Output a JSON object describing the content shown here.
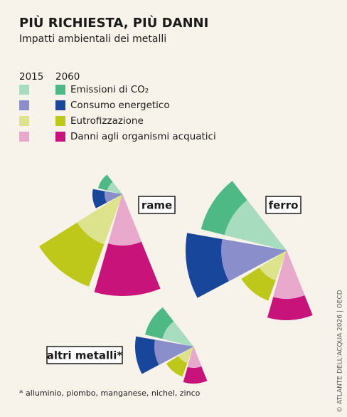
{
  "title": "PIÙ RICHIESTA, PIÙ DANNI",
  "subtitle": "Impatti ambientali dei metalli",
  "footnote": "* alluminio, piombo, manganese, nichel, zinco",
  "source": "© ATLANTE DELL'ACQUA 2026 | OECD",
  "chart_data": {
    "type": "rose",
    "categories": [
      "Emissioni di CO₂",
      "Consumo energetico",
      "Eutrofizzazione",
      "Danni agli organismi acquatici"
    ],
    "series": [
      {
        "name": "2015",
        "colors": [
          "#a8dcbf",
          "#8a8ecb",
          "#dde38d",
          "#e9a9cd"
        ]
      },
      {
        "name": "2060",
        "colors": [
          "#4fb985",
          "#17469a",
          "#bec81b",
          "#c8137b"
        ]
      }
    ],
    "groups": [
      {
        "name": "rame",
        "values": [
          [
            22,
            25,
            75,
            72
          ],
          [
            35,
            42,
            138,
            143
          ]
        ]
      },
      {
        "name": "ferro",
        "values": [
          [
            90,
            92,
            45,
            68
          ],
          [
            124,
            142,
            75,
            98
          ]
        ]
      },
      {
        "name": "altri metalli*",
        "values": [
          [
            45,
            55,
            25,
            30
          ],
          [
            70,
            82,
            45,
            52
          ]
        ]
      }
    ]
  }
}
